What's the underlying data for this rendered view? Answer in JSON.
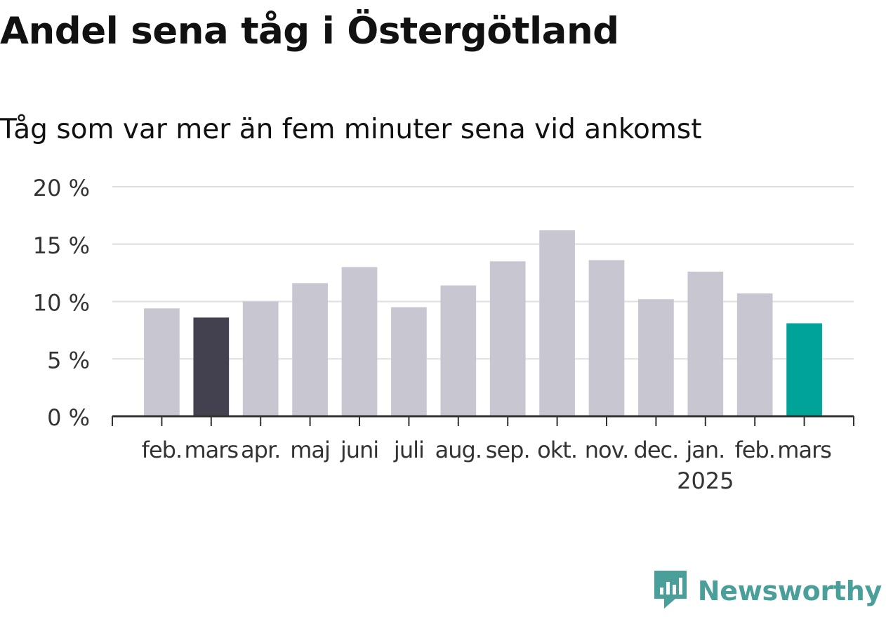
{
  "title": "Andel sena tåg i Östergötland",
  "subtitle": "Tåg som var mer än fem minuter sena vid ankomst",
  "brand": {
    "name": "Newsworthy",
    "icon": "newsworthy-logo-icon",
    "color": "#4b9f9a"
  },
  "chart_data": {
    "type": "bar",
    "categories": [
      "feb.",
      "mars",
      "apr.",
      "maj",
      "juni",
      "juli",
      "aug.",
      "sep.",
      "okt.",
      "nov.",
      "dec.",
      "jan.",
      "feb.",
      "mars"
    ],
    "category_sublabels": [
      "",
      "",
      "",
      "",
      "",
      "",
      "",
      "",
      "",
      "",
      "",
      "2025",
      "",
      ""
    ],
    "values": [
      9.4,
      8.6,
      10.0,
      11.6,
      13.0,
      9.5,
      11.4,
      13.5,
      16.2,
      13.6,
      10.2,
      12.6,
      10.7,
      8.1
    ],
    "colors": [
      "#c8c7d1",
      "#43414f",
      "#c8c7d1",
      "#c8c7d1",
      "#c8c7d1",
      "#c8c7d1",
      "#c8c7d1",
      "#c8c7d1",
      "#c8c7d1",
      "#c8c7d1",
      "#c8c7d1",
      "#c8c7d1",
      "#c8c7d1",
      "#00a398"
    ],
    "yticks": [
      0,
      5,
      10,
      15,
      20
    ],
    "ytick_labels": [
      "0 %",
      "5 %",
      "10 %",
      "15 %",
      "20 %"
    ],
    "ylim": [
      0,
      20
    ],
    "grid": true,
    "xlabel": "",
    "ylabel": ""
  }
}
